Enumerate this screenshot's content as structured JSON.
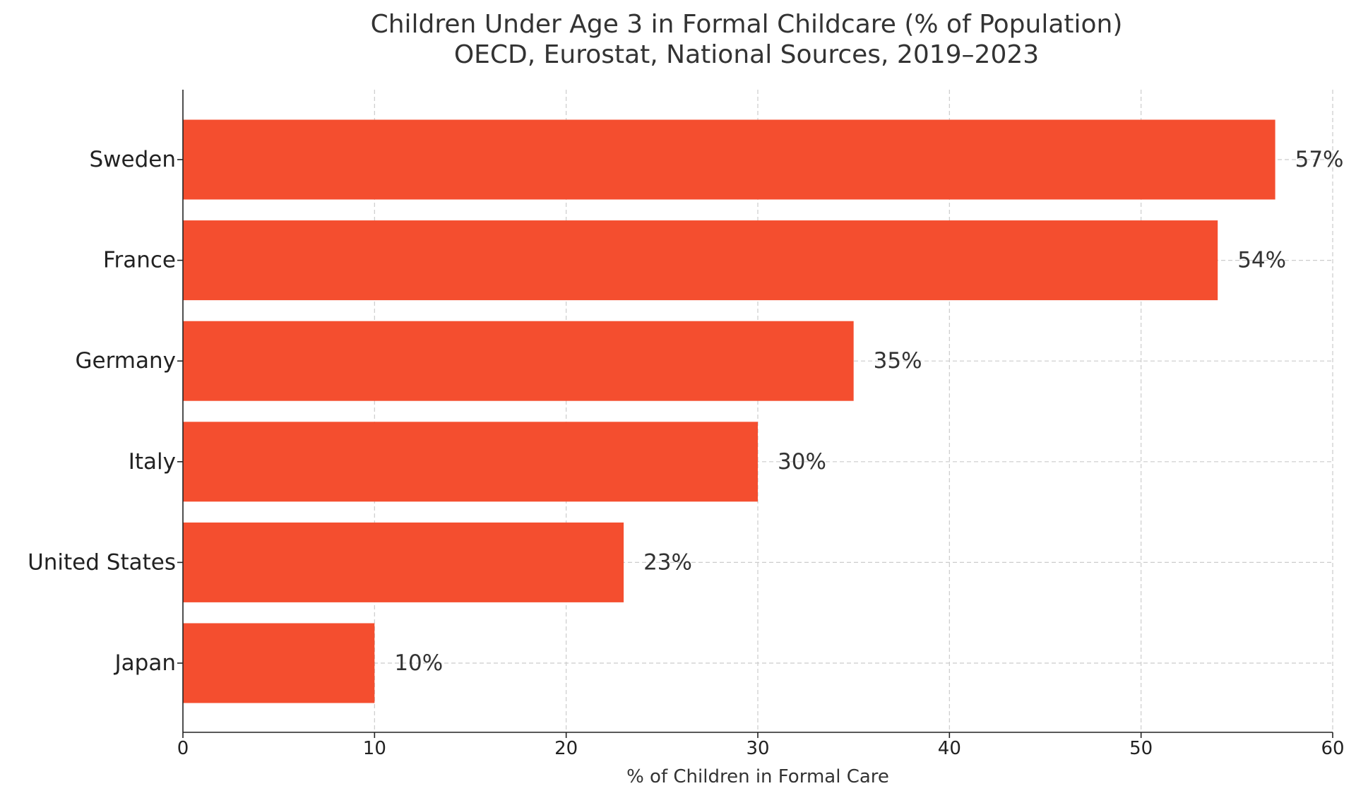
{
  "chart_data": {
    "type": "bar",
    "orientation": "horizontal",
    "title": "Children Under Age 3 in Formal Childcare (% of Population)",
    "subtitle": "OECD, Eurostat, National Sources, 2019–2023",
    "xlabel": "% of Children in Formal Care",
    "ylabel": "",
    "categories": [
      "Sweden",
      "France",
      "Germany",
      "Italy",
      "United States",
      "Japan"
    ],
    "values": [
      57,
      54,
      35,
      30,
      23,
      10
    ],
    "value_labels": [
      "57%",
      "54%",
      "35%",
      "30%",
      "23%",
      "10%"
    ],
    "xlim": [
      0,
      60
    ],
    "x_ticks": [
      0,
      10,
      20,
      30,
      40,
      50,
      60
    ],
    "x_tick_labels": [
      "0",
      "10",
      "20",
      "30",
      "40",
      "50",
      "60"
    ],
    "grid": true,
    "bar_color": "#f44e2f"
  }
}
